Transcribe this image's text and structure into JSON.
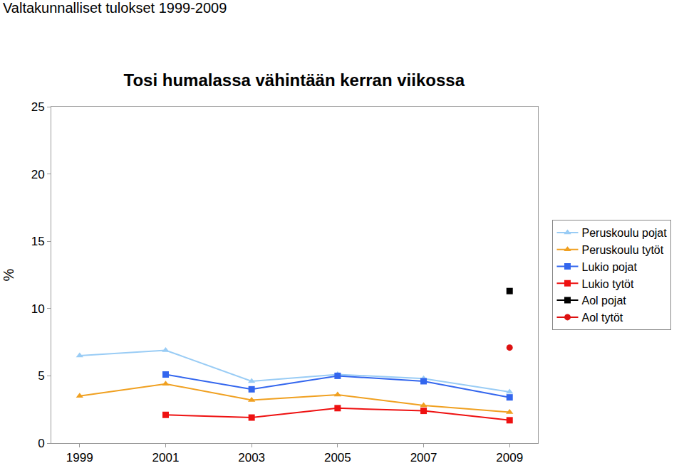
{
  "header": "Valtakunnalliset tulokset 1999-2009",
  "chart_data": {
    "type": "line",
    "title": "Tosi humalassa vähintään kerran viikossa",
    "y_label": "%",
    "categories": [
      "1999",
      "2001",
      "2003",
      "2005",
      "2007",
      "2009"
    ],
    "series": [
      {
        "name": "Peruskoulu pojat",
        "color": "#99ccf5",
        "marker": "triangle",
        "values": [
          6.5,
          6.9,
          4.6,
          5.1,
          4.8,
          3.8
        ]
      },
      {
        "name": "Peruskoulu tytöt",
        "color": "#f0a020",
        "marker": "triangle",
        "values": [
          3.5,
          4.4,
          3.2,
          3.6,
          2.8,
          2.3
        ]
      },
      {
        "name": "Lukio pojat",
        "color": "#3366ee",
        "marker": "square",
        "values": [
          null,
          5.1,
          4.0,
          5.0,
          4.6,
          3.4
        ]
      },
      {
        "name": "Lukio tytöt",
        "color": "#ee1111",
        "marker": "square",
        "values": [
          null,
          2.1,
          1.9,
          2.6,
          2.4,
          1.7
        ]
      },
      {
        "name": "Aol pojat",
        "color": "#000000",
        "marker": "square",
        "values": [
          null,
          null,
          null,
          null,
          null,
          11.3
        ]
      },
      {
        "name": "Aol tytöt",
        "color": "#dd1111",
        "marker": "circle",
        "values": [
          null,
          null,
          null,
          null,
          null,
          7.1
        ]
      }
    ],
    "ylim": [
      0,
      25
    ],
    "yticks": [
      0,
      5,
      10,
      15,
      20,
      25
    ],
    "grid": false,
    "legend": "right"
  }
}
